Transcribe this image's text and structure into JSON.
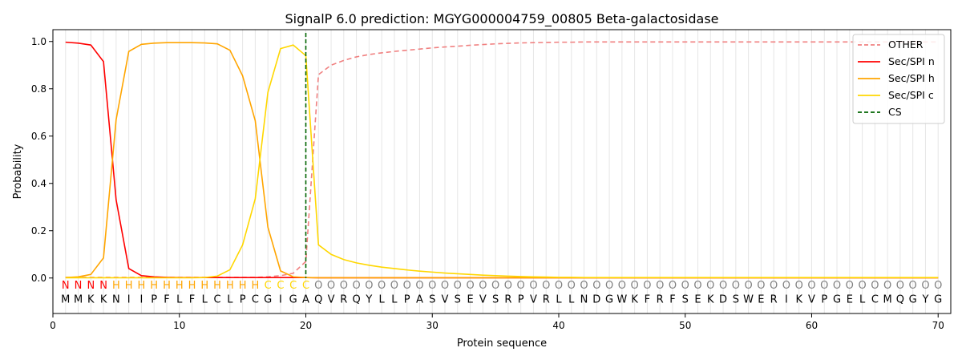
{
  "chart_data": {
    "type": "line",
    "title": "SignalP 6.0 prediction: MGYG000004759_00805 Beta-galactosidase",
    "xlabel": "Protein sequence",
    "ylabel": "Probability",
    "xlim": [
      0,
      71
    ],
    "ylim": [
      -0.15,
      1.05
    ],
    "xticks": [
      0,
      10,
      20,
      30,
      40,
      50,
      60,
      70
    ],
    "yticks": [
      0.0,
      0.2,
      0.4,
      0.6,
      0.8,
      1.0
    ],
    "grid": "vertical lines at each residue",
    "legend_position": "top-right",
    "sequence": [
      "M",
      "M",
      "K",
      "K",
      "N",
      "I",
      "I",
      "P",
      "F",
      "L",
      "F",
      "L",
      "C",
      "L",
      "P",
      "C",
      "G",
      "I",
      "G",
      "A",
      "Q",
      "V",
      "R",
      "Q",
      "Y",
      "L",
      "L",
      "P",
      "A",
      "S",
      "V",
      "S",
      "E",
      "V",
      "S",
      "R",
      "P",
      "V",
      "R",
      "L",
      "L",
      "N",
      "D",
      "G",
      "W",
      "K",
      "F",
      "R",
      "F",
      "S",
      "E",
      "K",
      "D",
      "S",
      "W",
      "E",
      "R",
      "I",
      "K",
      "V",
      "P",
      "G",
      "E",
      "L",
      "C",
      "M",
      "Q",
      "G",
      "Y",
      "G"
    ],
    "region_labels": [
      "N",
      "N",
      "N",
      "N",
      "H",
      "H",
      "H",
      "H",
      "H",
      "H",
      "H",
      "H",
      "H",
      "H",
      "H",
      "H",
      "C",
      "C",
      "C",
      "C",
      "O",
      "O",
      "O",
      "O",
      "O",
      "O",
      "O",
      "O",
      "O",
      "O",
      "O",
      "O",
      "O",
      "O",
      "O",
      "O",
      "O",
      "O",
      "O",
      "O",
      "O",
      "O",
      "O",
      "O",
      "O",
      "O",
      "O",
      "O",
      "O",
      "O",
      "O",
      "O",
      "O",
      "O",
      "O",
      "O",
      "O",
      "O",
      "O",
      "O",
      "O",
      "O",
      "O",
      "O",
      "O",
      "O",
      "O",
      "O",
      "O",
      "O"
    ],
    "region_colors": {
      "N": "#ff0000",
      "H": "#ffa500",
      "C": "#ffd700",
      "O": "#808080"
    },
    "series": [
      {
        "name": "OTHER",
        "color": "#f08080",
        "dash": "dashed",
        "values": [
          0.003,
          0.003,
          0.003,
          0.003,
          0.003,
          0.003,
          0.003,
          0.003,
          0.003,
          0.003,
          0.003,
          0.003,
          0.003,
          0.003,
          0.003,
          0.003,
          0.005,
          0.01,
          0.02,
          0.07,
          0.86,
          0.9,
          0.92,
          0.935,
          0.945,
          0.952,
          0.958,
          0.963,
          0.968,
          0.973,
          0.977,
          0.98,
          0.984,
          0.987,
          0.99,
          0.992,
          0.994,
          0.995,
          0.996,
          0.997,
          0.997,
          0.998,
          0.998,
          0.998,
          0.998,
          0.998,
          0.998,
          0.998,
          0.998,
          0.998,
          0.998,
          0.998,
          0.998,
          0.998,
          0.998,
          0.998,
          0.998,
          0.998,
          0.998,
          0.998,
          0.998,
          0.998,
          0.998,
          0.998,
          0.998,
          0.998,
          0.998,
          0.998,
          0.998,
          0.998
        ]
      },
      {
        "name": "Sec/SPI n",
        "color": "#ff0000",
        "dash": "solid",
        "values": [
          0.997,
          0.993,
          0.985,
          0.915,
          0.33,
          0.04,
          0.01,
          0.005,
          0.003,
          0.002,
          0.002,
          0.002,
          0.002,
          0.002,
          0.002,
          0.002,
          0.002,
          0.002,
          0.002,
          0.002,
          0.001,
          0.001,
          0.001,
          0.001,
          0.001,
          0.001,
          0.001,
          0.001,
          0.001,
          0.001,
          0.001,
          0.001,
          0.001,
          0.001,
          0.001,
          0.001,
          0.001,
          0.001,
          0.001,
          0.001,
          0.001,
          0.001,
          0.001,
          0.001,
          0.001,
          0.001,
          0.001,
          0.001,
          0.001,
          0.001,
          0.001,
          0.001,
          0.001,
          0.001,
          0.001,
          0.001,
          0.001,
          0.001,
          0.001,
          0.001,
          0.001,
          0.001,
          0.001,
          0.001,
          0.001,
          0.001,
          0.001,
          0.001,
          0.001,
          0.001
        ]
      },
      {
        "name": "Sec/SPI h",
        "color": "#ffa500",
        "dash": "solid",
        "values": [
          0.002,
          0.005,
          0.015,
          0.085,
          0.67,
          0.958,
          0.988,
          0.993,
          0.995,
          0.995,
          0.995,
          0.994,
          0.99,
          0.963,
          0.855,
          0.665,
          0.215,
          0.03,
          0.005,
          0.002,
          0.001,
          0.001,
          0.001,
          0.001,
          0.001,
          0.001,
          0.001,
          0.001,
          0.001,
          0.001,
          0.001,
          0.001,
          0.001,
          0.001,
          0.001,
          0.001,
          0.001,
          0.001,
          0.001,
          0.001,
          0.001,
          0.001,
          0.001,
          0.001,
          0.001,
          0.001,
          0.001,
          0.001,
          0.001,
          0.001,
          0.001,
          0.001,
          0.001,
          0.001,
          0.001,
          0.001,
          0.001,
          0.001,
          0.001,
          0.001,
          0.001,
          0.001,
          0.001,
          0.001,
          0.001,
          0.001,
          0.001,
          0.001,
          0.001,
          0.001
        ]
      },
      {
        "name": "Sec/SPI c",
        "color": "#ffd700",
        "dash": "solid",
        "values": [
          0.001,
          0.001,
          0.001,
          0.001,
          0.001,
          0.001,
          0.001,
          0.001,
          0.001,
          0.001,
          0.001,
          0.002,
          0.008,
          0.035,
          0.14,
          0.335,
          0.785,
          0.97,
          0.985,
          0.94,
          0.14,
          0.1,
          0.078,
          0.064,
          0.054,
          0.046,
          0.04,
          0.034,
          0.029,
          0.025,
          0.021,
          0.018,
          0.015,
          0.012,
          0.01,
          0.008,
          0.006,
          0.005,
          0.004,
          0.003,
          0.003,
          0.002,
          0.002,
          0.002,
          0.002,
          0.002,
          0.002,
          0.002,
          0.002,
          0.002,
          0.002,
          0.002,
          0.002,
          0.002,
          0.002,
          0.002,
          0.002,
          0.002,
          0.002,
          0.002,
          0.002,
          0.002,
          0.002,
          0.002,
          0.002,
          0.002,
          0.002,
          0.002,
          0.002,
          0.002
        ]
      }
    ],
    "cleavage_site": {
      "name": "CS",
      "x": 20,
      "color": "#006400",
      "dash": "dashed"
    }
  }
}
